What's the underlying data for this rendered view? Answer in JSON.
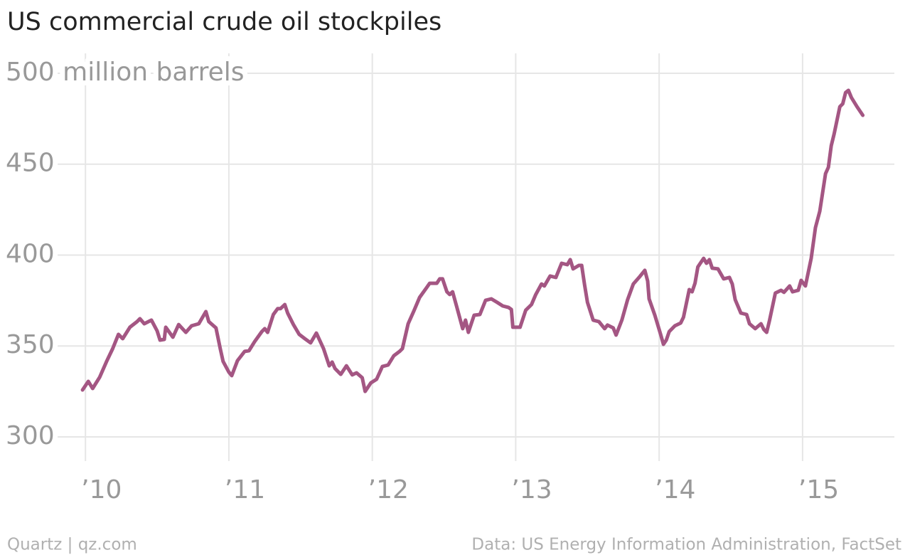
{
  "chart_data": {
    "type": "line",
    "title": "US commercial crude oil stockpiles",
    "credit": "Quartz | qz.com",
    "source": "Data: US Energy Information Administration, FactSet",
    "color": "#a45683",
    "grid": true,
    "xlim": [
      2009.9,
      2015.64
    ],
    "ylim": [
      290,
      509
    ],
    "xticks": [
      {
        "value": 2010,
        "label": "’10"
      },
      {
        "value": 2011,
        "label": "’11"
      },
      {
        "value": 2012,
        "label": "’12"
      },
      {
        "value": 2013,
        "label": "’13"
      },
      {
        "value": 2014,
        "label": "’14"
      },
      {
        "value": 2015,
        "label": "’15"
      }
    ],
    "yticks": [
      300,
      350,
      400,
      450,
      {
        "value": 500,
        "label": "500 million barrels"
      }
    ],
    "x": [
      2009.98,
      2010.02,
      2010.05,
      2010.1,
      2010.15,
      2010.19,
      2010.23,
      2010.26,
      2010.31,
      2010.36,
      2010.38,
      2010.41,
      2010.46,
      2010.5,
      2010.52,
      2010.55,
      2010.56,
      2010.61,
      2010.65,
      2010.7,
      2010.74,
      2010.79,
      2010.84,
      2010.86,
      2010.91,
      2010.94,
      2010.96,
      2011.0,
      2011.02,
      2011.06,
      2011.11,
      2011.14,
      2011.18,
      2011.23,
      2011.25,
      2011.27,
      2011.31,
      2011.34,
      2011.36,
      2011.39,
      2011.41,
      2011.45,
      2011.49,
      2011.53,
      2011.57,
      2011.61,
      2011.66,
      2011.7,
      2011.72,
      2011.74,
      2011.78,
      2011.82,
      2011.86,
      2011.89,
      2011.93,
      2011.95,
      2011.99,
      2012.03,
      2012.07,
      2012.11,
      2012.15,
      2012.19,
      2012.21,
      2012.25,
      2012.29,
      2012.33,
      2012.38,
      2012.4,
      2012.45,
      2012.47,
      2012.49,
      2012.52,
      2012.54,
      2012.56,
      2012.59,
      2012.63,
      2012.65,
      2012.67,
      2012.71,
      2012.75,
      2012.79,
      2012.83,
      2012.87,
      2012.91,
      2012.95,
      2012.97,
      2012.98,
      2013.03,
      2013.07,
      2013.11,
      2013.14,
      2013.18,
      2013.2,
      2013.24,
      2013.28,
      2013.32,
      2013.36,
      2013.38,
      2013.4,
      2013.44,
      2013.46,
      2013.48,
      2013.5,
      2013.54,
      2013.58,
      2013.62,
      2013.64,
      2013.68,
      2013.7,
      2013.74,
      2013.78,
      2013.82,
      2013.86,
      2013.88,
      2013.9,
      2013.92,
      2013.93,
      2013.97,
      2014.01,
      2014.03,
      2014.05,
      2014.07,
      2014.11,
      2014.15,
      2014.17,
      2014.21,
      2014.23,
      2014.25,
      2014.27,
      2014.31,
      2014.33,
      2014.35,
      2014.37,
      2014.41,
      2014.45,
      2014.49,
      2014.51,
      2014.53,
      2014.57,
      2014.61,
      2014.63,
      2014.67,
      2014.71,
      2014.73,
      2014.75,
      2014.77,
      2014.81,
      2014.85,
      2014.87,
      2014.91,
      2014.93,
      2014.97,
      2014.99,
      2015.02,
      2015.06,
      2015.09,
      2015.12,
      2015.16,
      2015.18,
      2015.2,
      2015.22,
      2015.26,
      2015.28,
      2015.3,
      2015.32,
      2015.34,
      2015.38,
      2015.42
    ],
    "values": [
      325.8,
      330.5,
      326.6,
      332.9,
      341.9,
      348.5,
      356.4,
      354.0,
      360.3,
      363.4,
      365.0,
      362.2,
      364.2,
      358.3,
      353.2,
      353.6,
      360.3,
      354.8,
      361.8,
      357.5,
      361.1,
      362.2,
      368.9,
      363.4,
      359.9,
      348.5,
      341.5,
      335.6,
      333.7,
      341.9,
      347.0,
      347.4,
      352.4,
      357.9,
      359.5,
      357.5,
      367.3,
      370.5,
      370.5,
      372.8,
      368.1,
      361.8,
      356.4,
      354.0,
      351.7,
      357.1,
      348.5,
      339.1,
      341.1,
      337.6,
      334.4,
      339.1,
      334.1,
      335.2,
      332.5,
      325.0,
      329.7,
      331.7,
      338.7,
      339.5,
      344.6,
      347.0,
      348.5,
      362.2,
      369.3,
      376.7,
      382.2,
      384.5,
      384.5,
      386.9,
      386.9,
      379.8,
      378.3,
      379.8,
      371.2,
      359.5,
      364.2,
      357.5,
      366.9,
      367.3,
      375.1,
      375.9,
      374.0,
      372.0,
      371.2,
      370.1,
      360.3,
      360.3,
      369.7,
      372.8,
      378.3,
      384.1,
      383.0,
      388.5,
      387.7,
      395.5,
      394.7,
      397.5,
      392.4,
      394.3,
      394.3,
      383.8,
      374.0,
      364.2,
      363.4,
      359.5,
      361.5,
      359.9,
      356.0,
      364.2,
      375.5,
      384.1,
      387.7,
      389.6,
      391.6,
      385.7,
      375.9,
      366.9,
      356.4,
      350.9,
      353.2,
      357.9,
      361.1,
      362.6,
      365.8,
      381.0,
      379.8,
      384.5,
      393.5,
      398.2,
      395.5,
      397.5,
      392.8,
      392.4,
      386.9,
      387.7,
      384.1,
      375.5,
      368.1,
      367.3,
      362.2,
      359.5,
      362.2,
      359.1,
      357.5,
      364.2,
      379.1,
      380.6,
      379.5,
      383.0,
      379.8,
      380.6,
      386.1,
      383.0,
      398.2,
      415.1,
      424.1,
      444.8,
      448.3,
      460.1,
      466.7,
      481.6,
      483.2,
      489.4,
      490.6,
      486.7,
      481.6,
      476.9
    ]
  }
}
